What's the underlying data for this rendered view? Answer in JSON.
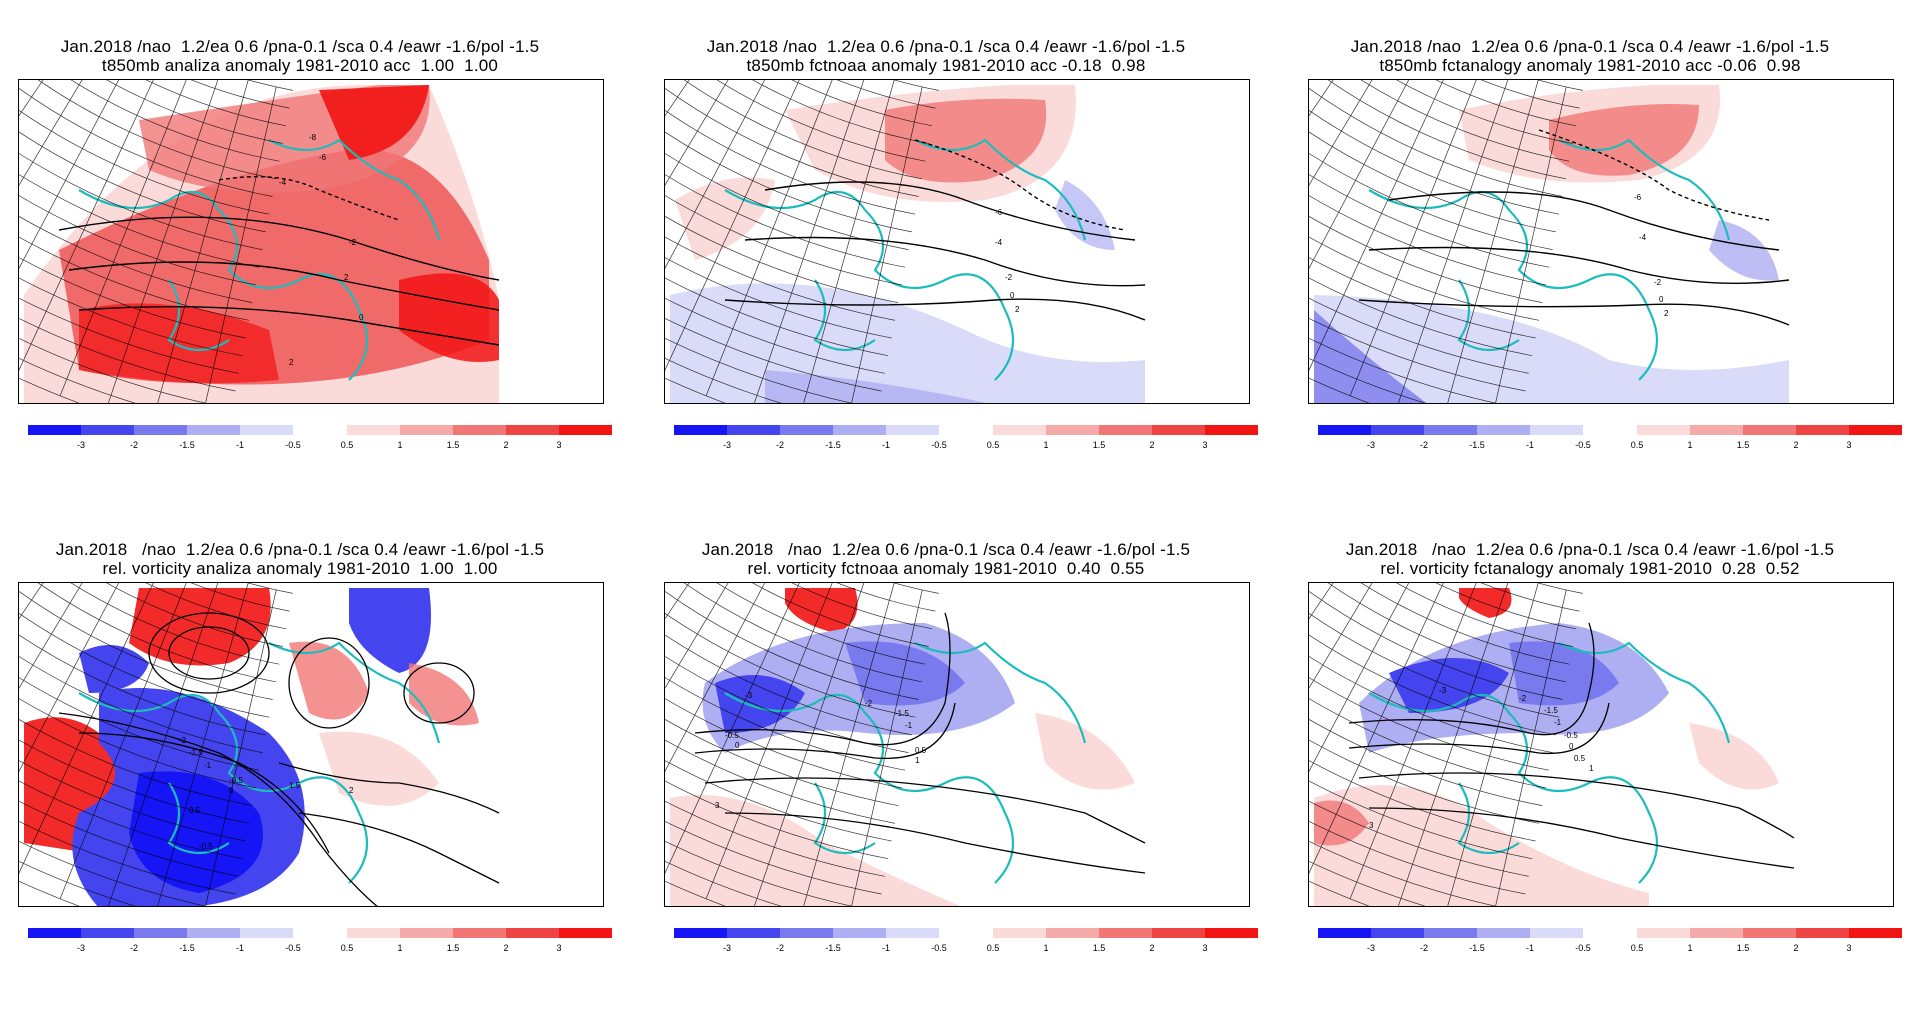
{
  "colors": {
    "neg": [
      "#1515f5",
      "#4545f0",
      "#7a7aef",
      "#aeaef3",
      "#dadaf9"
    ],
    "pos": [
      "#fbdada",
      "#f5aaaa",
      "#f17777",
      "#ee4444",
      "#f21313"
    ],
    "coast": "#1cbcbc"
  },
  "colorbar_labels": {
    "neg": [
      "-3",
      "-2",
      "-1.5",
      "-1",
      "-0.5"
    ],
    "pos": [
      "0.5",
      "1",
      "1.5",
      "2",
      "3"
    ]
  },
  "panels": [
    {
      "title_line1": "Jan.2018 /nao  1.2/ea 0.6 /pna-0.1 /sca 0.4 /eawr -1.6/pol -1.5",
      "title_line2": "t850mb analiza anomaly 1981-2010 acc  1.00  1.00",
      "contour_labels": [
        "-8",
        "-6",
        "-4",
        "-2",
        "2",
        "0",
        "2"
      ]
    },
    {
      "title_line1": "Jan.2018 /nao  1.2/ea 0.6 /pna-0.1 /sca 0.4 /eawr -1.6/pol -1.5",
      "title_line2": "t850mb fctnoaa anomaly 1981-2010 acc -0.18  0.98",
      "contour_labels": [
        "-6",
        "-4",
        "-2",
        "0",
        "2"
      ]
    },
    {
      "title_line1": "Jan.2018 /nao  1.2/ea 0.6 /pna-0.1 /sca 0.4 /eawr -1.6/pol -1.5",
      "title_line2": "t850mb fctanalogy anomaly 1981-2010 acc -0.06  0.98",
      "contour_labels": [
        "-6",
        "-4",
        "-2",
        "0",
        "2"
      ]
    },
    {
      "title_line1": "Jan.2018   /nao  1.2/ea 0.6 /pna-0.1 /sca 0.4 /eawr -1.6/pol -1.5",
      "title_line2": "rel. vorticity analiza anomaly 1981-2010  1.00  1.00",
      "contour_labels": [
        "-2",
        "-1.5",
        "-1",
        "-0.5",
        "0",
        "0.5",
        "1.5",
        "2",
        "-0.5"
      ]
    },
    {
      "title_line1": "Jan.2018   /nao  1.2/ea 0.6 /pna-0.1 /sca 0.4 /eawr -1.6/pol -1.5",
      "title_line2": "rel. vorticity fctnoaa anomaly 1981-2010  0.40  0.55",
      "contour_labels": [
        "-3",
        "-2",
        "-1.5",
        "-1",
        "-0.5",
        "0",
        "0.5",
        "1",
        "3"
      ]
    },
    {
      "title_line1": "Jan.2018   /nao  1.2/ea 0.6 /pna-0.1 /sca 0.4 /eawr -1.6/pol -1.5",
      "title_line2": "rel. vorticity fctanalogy anomaly 1981-2010  0.28  0.52",
      "contour_labels": [
        "-3",
        "-2",
        "-1.5",
        "-1",
        "-0.5",
        "0",
        "0.5",
        "1",
        "3"
      ]
    }
  ]
}
